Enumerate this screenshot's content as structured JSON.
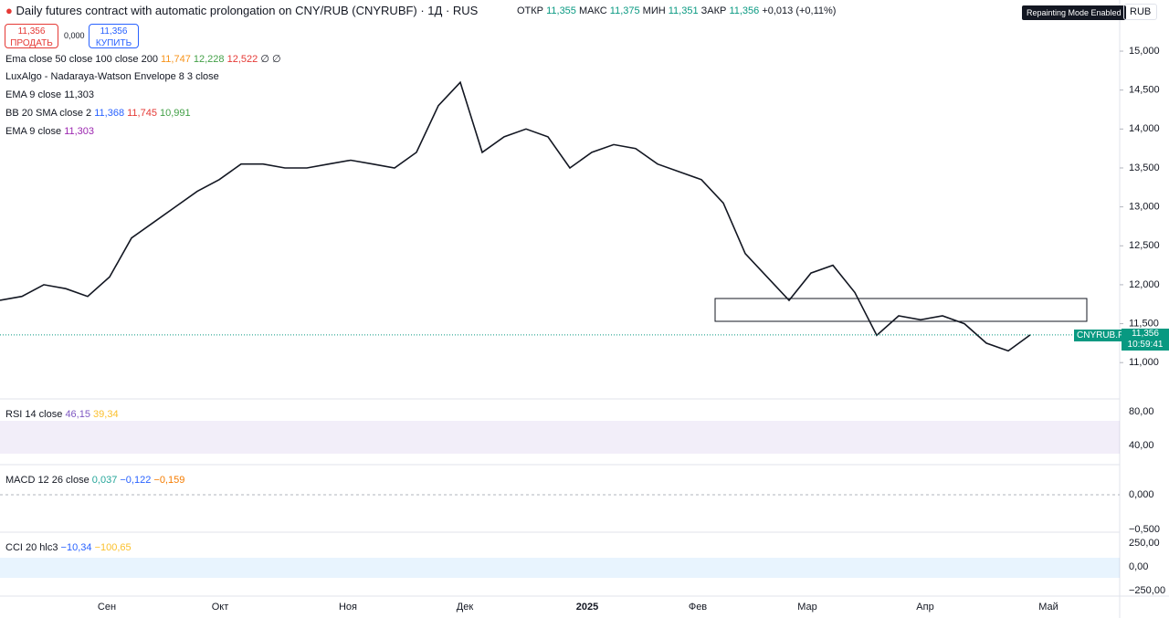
{
  "header": {
    "title": "Daily futures contract with automatic prolongation on CNY/RUB (CNYRUBF) · 1Д · RUS",
    "ohlc": [
      "ОТКР",
      "11,355",
      "МАКС",
      "11,375",
      "МИН",
      "11,351",
      "ЗАКР",
      "11,356",
      "+0,013 (+0,11%)"
    ],
    "sell": {
      "price": "11,356",
      "label": "ПРОДАТЬ"
    },
    "spread": "0,000",
    "buy": {
      "price": "11,356",
      "label": "КУПИТЬ"
    },
    "badge": "Repainting Mode Enabled",
    "currency": "RUB"
  },
  "indicators": [
    {
      "name": "Ema close 50 close 100 close 200",
      "values": [
        {
          "text": "11,747",
          "color": "#f7931a"
        },
        {
          "text": "12,228",
          "color": "#43a047"
        },
        {
          "text": "12,522",
          "color": "#e53935"
        },
        {
          "text": "∅ ∅",
          "color": "#131722"
        }
      ]
    },
    {
      "name": "LuxAlgo - Nadaraya-Watson Envelope 8 3 close",
      "values": []
    },
    {
      "name": "EMA 9 close",
      "values": [
        {
          "text": "11,303",
          "color": "#131722"
        }
      ]
    },
    {
      "name": "BB 20 SMA close 2",
      "values": [
        {
          "text": "11,368",
          "color": "#2962ff"
        },
        {
          "text": "11,745",
          "color": "#e53935"
        },
        {
          "text": "10,991",
          "color": "#43a047"
        }
      ]
    },
    {
      "name": "EMA 9 close",
      "values": [
        {
          "text": "11,303",
          "color": "#9c27b0"
        }
      ]
    }
  ],
  "chart_data": {
    "type": "line",
    "color": "#131722",
    "values": [
      11.8,
      11.85,
      12.0,
      11.95,
      11.85,
      12.1,
      12.6,
      12.8,
      13.0,
      13.2,
      13.35,
      13.55,
      13.55,
      13.5,
      13.5,
      13.55,
      13.6,
      13.55,
      13.5,
      13.7,
      14.3,
      14.6,
      13.7,
      13.9,
      14.0,
      13.9,
      13.5,
      13.7,
      13.8,
      13.75,
      13.55,
      13.45,
      13.35,
      13.05,
      12.4,
      12.1,
      11.8,
      12.15,
      12.25,
      11.9,
      11.35,
      11.6,
      11.55,
      11.6,
      11.5,
      11.25,
      11.15,
      11.356
    ],
    "ylim": [
      10.557,
      15.657
    ],
    "yticks": [
      {
        "value": 15,
        "label": "15,000"
      },
      {
        "value": 14.5,
        "label": "14,500"
      },
      {
        "value": 14,
        "label": "14,000"
      },
      {
        "value": 13.5,
        "label": "13,500"
      },
      {
        "value": 13,
        "label": "13,000"
      },
      {
        "value": 12.5,
        "label": "12,500"
      },
      {
        "value": 12,
        "label": "12,000"
      },
      {
        "value": 11.5,
        "label": "11,500"
      },
      {
        "value": 11,
        "label": "11,000"
      }
    ]
  },
  "price_tag": {
    "symbol": "CNYRUB.P",
    "price": "11,356",
    "timer": "10:59:41"
  },
  "time_axis": [
    "Сен",
    "Окт",
    "Ноя",
    "Дек",
    "2025",
    "Фев",
    "Мар",
    "Апр",
    "Май"
  ],
  "panes": [
    {
      "name": "RSI 14 close",
      "values": [
        {
          "text": "46,15",
          "color": "#7e57c2"
        },
        {
          "text": "39,34",
          "color": "#fbc02d"
        }
      ],
      "ticks": [
        "80,00",
        "40,00"
      ]
    },
    {
      "name": "MACD 12 26 close",
      "values": [
        {
          "text": "0,037",
          "color": "#26a69a"
        },
        {
          "text": "−0,122",
          "color": "#2962ff"
        },
        {
          "text": "−0,159",
          "color": "#f57c00"
        }
      ],
      "ticks": [
        "0,000",
        "−0,500"
      ]
    },
    {
      "name": "CCI 20 hlc3",
      "values": [
        {
          "text": "−10,34",
          "color": "#2962ff"
        },
        {
          "text": "−100,65",
          "color": "#fbc02d"
        }
      ],
      "ticks": [
        "250,00",
        "0,00",
        "−250,00"
      ]
    }
  ]
}
